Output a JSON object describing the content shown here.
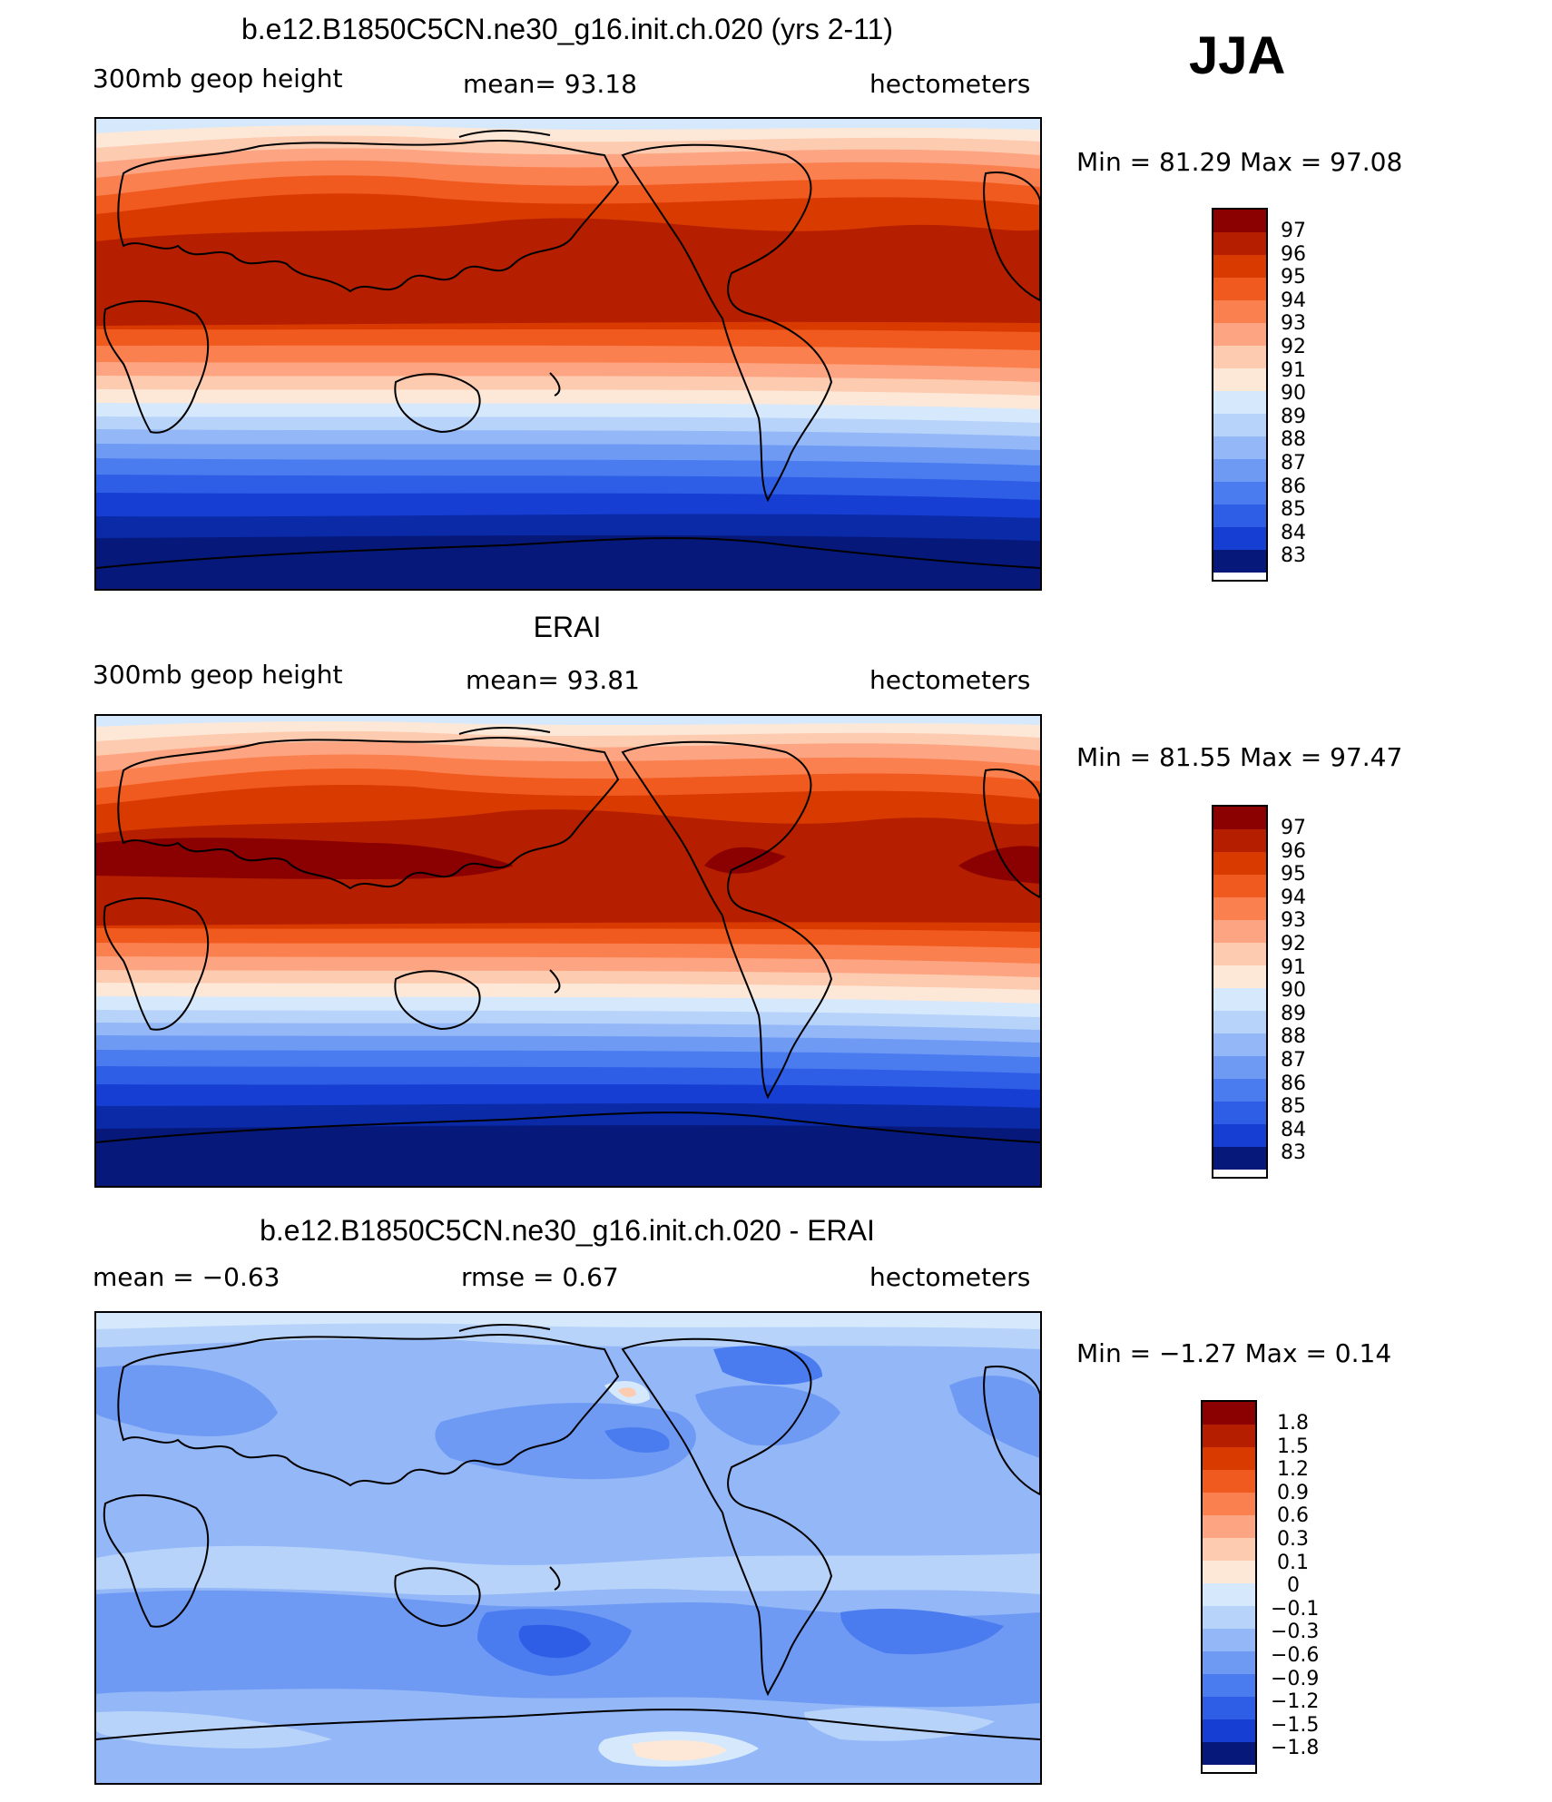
{
  "season": "JJA",
  "panels": [
    {
      "title": "b.e12.B1850C5CN.ne30_g16.init.ch.020 (yrs 2-11)",
      "left_label": "300mb  geop  height",
      "center_label": "mean=   93.18",
      "right_label": "hectometers",
      "minmax": "Min  =    81.29  Max  =    97.08",
      "colorbar_labels": [
        "97",
        "96",
        "95",
        "94",
        "93",
        "92",
        "91",
        "90",
        "89",
        "88",
        "87",
        "86",
        "85",
        "84",
        "83"
      ],
      "colors": [
        "#8b0000",
        "#b51f00",
        "#d93a00",
        "#f05a1e",
        "#fb8050",
        "#fda582",
        "#fdcbb0",
        "#fde8d8",
        "#d6e8fb",
        "#b8d3fa",
        "#93b7f7",
        "#6e9af4",
        "#4a7cf0",
        "#2e5ee6",
        "#163ed2",
        "#0a2aa8",
        "#06197a"
      ],
      "minmax_values": {
        "min": 81.29,
        "max": 97.08
      }
    },
    {
      "title": "ERAI",
      "left_label": "300mb  geop  height",
      "center_label": "mean=   93.81",
      "right_label": "hectometers",
      "minmax": "Min  =    81.55  Max  =    97.47",
      "colorbar_labels": [
        "97",
        "96",
        "95",
        "94",
        "93",
        "92",
        "91",
        "90",
        "89",
        "88",
        "87",
        "86",
        "85",
        "84",
        "83"
      ],
      "minmax_values": {
        "min": 81.55,
        "max": 97.47
      }
    },
    {
      "title": "b.e12.B1850C5CN.ne30_g16.init.ch.020 - ERAI",
      "left_label": "mean  =     −0.63",
      "center_label": "rmse  =      0.67",
      "right_label": "hectometers",
      "minmax": "Min  =    −1.27  Max  =      0.14",
      "colorbar_labels": [
        "1.8",
        "1.5",
        "1.2",
        "0.9",
        "0.6",
        "0.3",
        "0.1",
        "0",
        "−0.1",
        "−0.3",
        "−0.6",
        "−0.9",
        "−1.2",
        "−1.5",
        "−1.8"
      ],
      "minmax_values": {
        "min": -1.27,
        "max": 0.14
      }
    }
  ]
}
